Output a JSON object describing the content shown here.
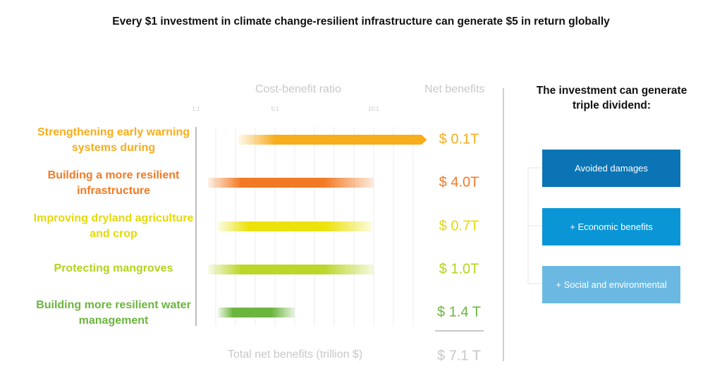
{
  "title": "Every $1 investment in climate change-resilient infrastructure can generate $5 in return globally",
  "chart_data": {
    "type": "bar",
    "subtype": "floating-range",
    "xlabel": "Cost-benefit ratio",
    "value_header": "Net benefits",
    "x_ticks": [
      "1:1",
      "5:1",
      "10:1"
    ],
    "x_tick_values": [
      1,
      5,
      10
    ],
    "xlim": [
      1,
      12
    ],
    "grid": true,
    "categories": [
      "Strengthening early warning systems during",
      "Building a more resilient infrastructure",
      "Improving dryland agriculture and crop",
      "Protecting mangroves",
      "Building more resilient water management"
    ],
    "ranges": [
      [
        3.1,
        12.7
      ],
      [
        1.6,
        10
      ],
      [
        2.1,
        9.9
      ],
      [
        1.6,
        10
      ],
      [
        2.1,
        6
      ]
    ],
    "open_ended": [
      true,
      false,
      false,
      false,
      false
    ],
    "net_benefits": [
      "$ 0.1T",
      "$ 4.0T",
      "$ 0.7T",
      "$ 1.0T",
      "$ 1.4 T"
    ],
    "colors": [
      "#f8ad1b",
      "#f37a24",
      "#ece20c",
      "#bcd62a",
      "#6cb53e"
    ],
    "total_label": "Total net benefits (trillion $)",
    "total_value": "$ 7.1 T"
  },
  "right_panel": {
    "title": "The investment can generate triple dividend:",
    "boxes": [
      {
        "label": "Avoided damages",
        "color": "#0b74b5"
      },
      {
        "label": "+ Economic benefits",
        "color": "#0a96d6"
      },
      {
        "label": "+ Social and environmental",
        "color": "#6bb9e2"
      }
    ]
  }
}
